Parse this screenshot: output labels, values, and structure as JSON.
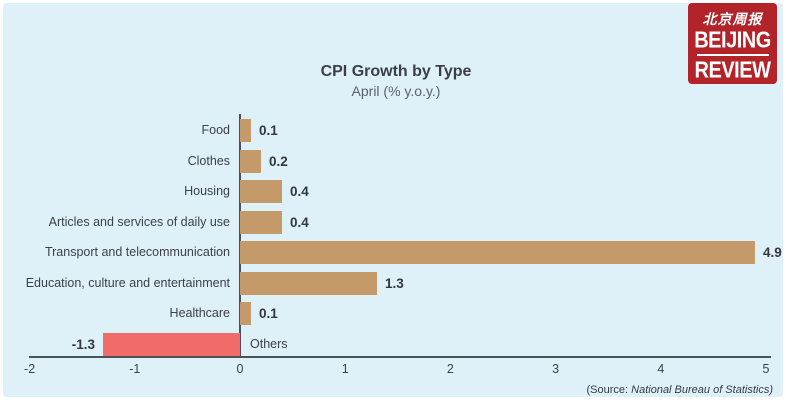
{
  "colors": {
    "background": "#def0f8",
    "bar_positive": "#c49a6a",
    "bar_negative": "#f26b6b",
    "axis": "#4b5158",
    "logo_red": "#b2232a"
  },
  "logo": {
    "chinese": "北京周报",
    "line1": "BEIJING",
    "line2": "REVIEW"
  },
  "chart": {
    "title": "CPI Growth by Type",
    "subtitle": "April (% y.o.y.)"
  },
  "chart_data": {
    "type": "bar",
    "orientation": "horizontal",
    "title": "CPI Growth by Type",
    "subtitle": "April (% y.o.y.)",
    "categories": [
      "Food",
      "Clothes",
      "Housing",
      "Articles and services of daily use",
      "Transport and telecommunication",
      "Education, culture and entertainment",
      "Healthcare",
      "Others"
    ],
    "values": [
      0.1,
      0.2,
      0.4,
      0.4,
      4.9,
      1.3,
      0.1,
      -1.3
    ],
    "value_labels": [
      "0.1",
      "0.2",
      "0.4",
      "0.4",
      "4.9",
      "1.3",
      "0.1",
      "-1.3"
    ],
    "xlabel": "",
    "ylabel": "",
    "xlim": [
      -2,
      5
    ],
    "x_ticks": [
      "-2",
      "-1",
      "0",
      "1",
      "2",
      "3",
      "4",
      "5"
    ],
    "grid": false,
    "legend": false,
    "bar_color_positive": "#c49a6a",
    "bar_color_negative": "#f26b6b"
  },
  "source": {
    "prefix": "(Source: ",
    "name": "National Bureau of Statistics)"
  }
}
